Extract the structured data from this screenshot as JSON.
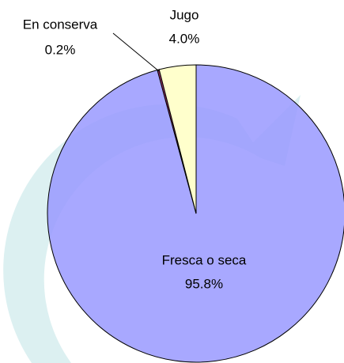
{
  "chart_data": {
    "type": "pie",
    "categories": [
      "Fresca o seca",
      "En conserva",
      "Jugo"
    ],
    "values": [
      95.8,
      0.2,
      4.0
    ],
    "value_labels": [
      "95.8%",
      "0.2%",
      "4.0%"
    ],
    "colors": [
      "#9999ff",
      "#993366",
      "#ffffcc"
    ]
  }
}
